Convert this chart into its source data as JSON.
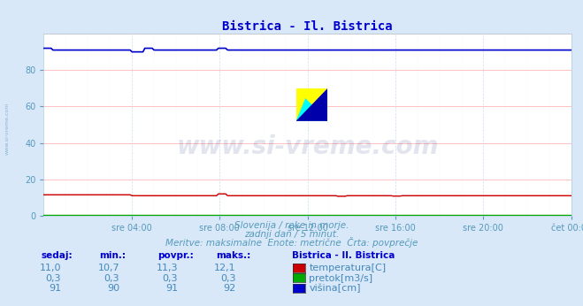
{
  "title": "Bistrica - Il. Bistrica",
  "title_color": "#0000cc",
  "bg_color": "#d8e8f8",
  "plot_bg_color": "#ffffff",
  "grid_color_h": "#ffaaaa",
  "grid_color_v": "#ccddee",
  "xlabel_color": "#5599bb",
  "ylabel_ticks": [
    0,
    20,
    40,
    60,
    80
  ],
  "ylim": [
    0,
    100
  ],
  "x_tick_labels": [
    "sre 04:00",
    "sre 08:00",
    "sre 12:00",
    "sre 16:00",
    "sre 20:00",
    "čet 00:00"
  ],
  "n_points": 288,
  "temp_color": "#cc0000",
  "flow_color": "#00aa00",
  "height_color": "#0000cc",
  "watermark_text": "www.si-vreme.com",
  "watermark_color": "#203080",
  "watermark_alpha": 0.13,
  "watermark_fontsize": 20,
  "subtitle1": "Slovenija / reke in morje.",
  "subtitle2": "zadnji dan / 5 minut.",
  "subtitle3": "Meritve: maksimalne  Enote: metrične  Črta: povprečje",
  "subtitle_color": "#5599bb",
  "legend_title": "Bistrica - Il. Bistrica",
  "legend_title_color": "#0000cc",
  "legend_items": [
    "temperatura[C]",
    "pretok[m3/s]",
    "višina[cm]"
  ],
  "legend_colors": [
    "#cc0000",
    "#00aa00",
    "#0000cc"
  ],
  "table_headers": [
    "sedaj:",
    "min.:",
    "povpr.:",
    "maks.:"
  ],
  "table_header_color": "#0000cc",
  "table_data": [
    [
      "11,0",
      "10,7",
      "11,3",
      "12,1"
    ],
    [
      "0,3",
      "0,3",
      "0,3",
      "0,3"
    ],
    [
      "91",
      "90",
      "91",
      "92"
    ]
  ],
  "table_data_color": "#4488bb",
  "side_watermark": "www.si-vreme.com",
  "side_watermark_color": "#7aadcc"
}
